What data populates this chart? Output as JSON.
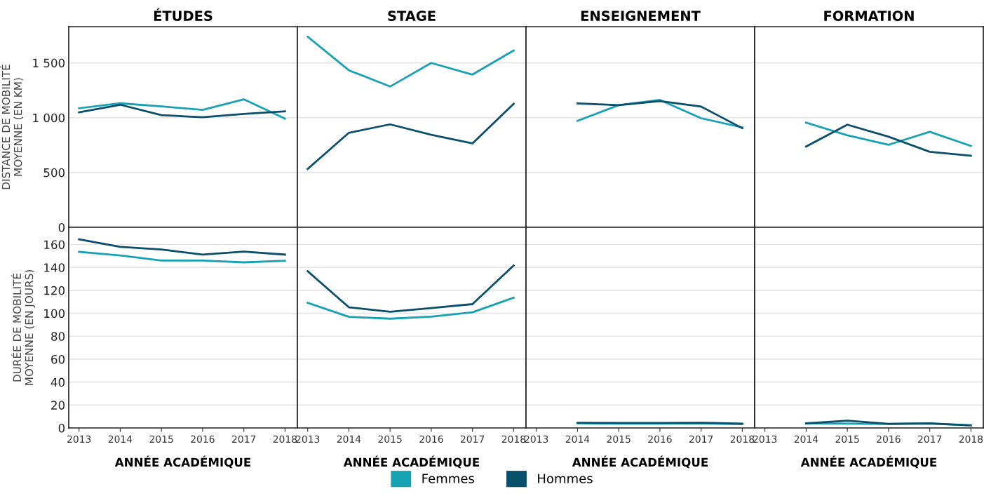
{
  "chart_data": [
    {
      "type": "line",
      "title": "ÉTUDES",
      "ylabel": "DISTANCE DE MOBILITÉ\nMOYENNE (EN KM)",
      "x": [
        2013,
        2014,
        2015,
        2016,
        2017,
        2018
      ],
      "xlim": [
        2012.75,
        2018.3
      ],
      "xticks": [
        2013,
        2014,
        2015,
        2016,
        2017,
        2018
      ],
      "ylim": [
        0,
        1830
      ],
      "yticks": [
        0,
        500,
        {
          "value": 1000,
          "label": "1 000"
        },
        {
          "value": 1500,
          "label": "1 500"
        }
      ],
      "tick_labels": "y",
      "grid": "y",
      "legend": "bottom",
      "series": [
        {
          "name": "Femmes",
          "color": "#17a2b4",
          "values": [
            1086,
            1131,
            1103,
            1071,
            1167,
            991
          ]
        },
        {
          "name": "Hommes",
          "color": "#0a4f6a",
          "values": [
            1049,
            1118,
            1023,
            1004,
            1034,
            1057
          ]
        }
      ]
    },
    {
      "type": "line",
      "title": "STAGE",
      "x": [
        2013,
        2014,
        2015,
        2016,
        2017,
        2018
      ],
      "xlim": [
        2012.75,
        2018.3
      ],
      "xticks": [
        2013,
        2014,
        2015,
        2016,
        2017,
        2018
      ],
      "ylim": [
        0,
        1830
      ],
      "yticks": [
        0,
        500,
        1000,
        1500
      ],
      "tick_labels": false,
      "grid": "y",
      "series": [
        {
          "color": "#17a2b4",
          "values": [
            1738,
            1432,
            1284,
            1499,
            1393,
            1613
          ]
        },
        {
          "color": "#0a4f6a",
          "values": [
            532,
            862,
            939,
            844,
            765,
            1127
          ]
        }
      ]
    },
    {
      "type": "line",
      "title": "ENSEIGNEMENT",
      "xlim": [
        2012.75,
        2018.3
      ],
      "xticks": [
        2013,
        2014,
        2015,
        2016,
        2017,
        2018
      ],
      "ylim": [
        0,
        1830
      ],
      "yticks": [
        0,
        500,
        1000,
        1500
      ],
      "tick_labels": false,
      "grid": "y",
      "series": [
        {
          "color": "#17a2b4",
          "x": [
            2014,
            2015,
            2016,
            2017,
            2018
          ],
          "values": [
            971,
            1114,
            1162,
            995,
            911
          ]
        },
        {
          "color": "#0a4f6a",
          "x": [
            2014,
            2015,
            2016,
            2017,
            2018
          ],
          "values": [
            1130,
            1114,
            1151,
            1101,
            904
          ]
        }
      ]
    },
    {
      "type": "line",
      "title": "FORMATION",
      "xlim": [
        2012.75,
        2018.3
      ],
      "xticks": [
        2013,
        2014,
        2015,
        2016,
        2017,
        2018
      ],
      "ylim": [
        0,
        1830
      ],
      "yticks": [
        0,
        500,
        1000,
        1500
      ],
      "tick_labels": false,
      "grid": "y",
      "series": [
        {
          "color": "#17a2b4",
          "x": [
            2014,
            2015,
            2016,
            2017,
            2018
          ],
          "values": [
            955,
            839,
            753,
            871,
            742
          ]
        },
        {
          "color": "#0a4f6a",
          "x": [
            2014,
            2015,
            2016,
            2017,
            2018
          ],
          "values": [
            737,
            936,
            826,
            689,
            653
          ]
        }
      ]
    },
    {
      "type": "line",
      "xlabel": "ANNÉE ACADÉMIQUE",
      "ylabel": "DURÉE DE MOBILITÉ\nMOYENNE (EN JOURS)",
      "x": [
        2013,
        2014,
        2015,
        2016,
        2017,
        2018
      ],
      "xlim": [
        2012.75,
        2018.3
      ],
      "xticks": [
        2013,
        2014,
        2015,
        2016,
        2017,
        2018
      ],
      "ylim": [
        0,
        175
      ],
      "yticks": [
        0,
        20,
        40,
        60,
        80,
        100,
        120,
        140,
        160
      ],
      "grid": "y",
      "series": [
        {
          "color": "#17a2b4",
          "values": [
            153.6,
            150.4,
            146,
            146,
            144.4,
            145.8
          ]
        },
        {
          "color": "#0a4f6a",
          "values": [
            164.5,
            157.9,
            155.6,
            151.2,
            153.8,
            151.2
          ]
        }
      ]
    },
    {
      "type": "line",
      "xlabel": "ANNÉE ACADÉMIQUE",
      "x": [
        2013,
        2014,
        2015,
        2016,
        2017,
        2018
      ],
      "xlim": [
        2012.75,
        2018.3
      ],
      "xticks": [
        2013,
        2014,
        2015,
        2016,
        2017,
        2018
      ],
      "ylim": [
        0,
        175
      ],
      "yticks": [
        0,
        20,
        40,
        60,
        80,
        100,
        120,
        140,
        160
      ],
      "tick_labels": "x",
      "grid": "y",
      "series": [
        {
          "color": "#17a2b4",
          "values": [
            109.2,
            96.9,
            95.3,
            97.1,
            100.9,
            113.6
          ]
        },
        {
          "color": "#0a4f6a",
          "values": [
            136.7,
            105.2,
            101.3,
            104.5,
            108,
            141.7
          ]
        }
      ]
    },
    {
      "type": "line",
      "xlabel": "ANNÉE ACADÉMIQUE",
      "xlim": [
        2012.75,
        2018.3
      ],
      "xticks": [
        2013,
        2014,
        2015,
        2016,
        2017,
        2018
      ],
      "ylim": [
        0,
        175
      ],
      "yticks": [
        0,
        20,
        40,
        60,
        80,
        100,
        120,
        140,
        160
      ],
      "tick_labels": "x",
      "grid": "y",
      "series": [
        {
          "color": "#17a2b4",
          "x": [
            2014,
            2015,
            2016,
            2017,
            2018
          ],
          "values": [
            4,
            3.8,
            3.8,
            4,
            3.3
          ]
        },
        {
          "color": "#0a4f6a",
          "x": [
            2014,
            2015,
            2016,
            2017,
            2018
          ],
          "values": [
            4.5,
            4.3,
            4.3,
            4.5,
            3.8
          ]
        }
      ]
    },
    {
      "type": "line",
      "xlabel": "ANNÉE ACADÉMIQUE",
      "xlim": [
        2012.75,
        2018.3
      ],
      "xticks": [
        2013,
        2014,
        2015,
        2016,
        2017,
        2018
      ],
      "ylim": [
        0,
        175
      ],
      "yticks": [
        0,
        20,
        40,
        60,
        80,
        100,
        120,
        140,
        160
      ],
      "tick_labels": "x",
      "grid": "y",
      "series": [
        {
          "color": "#17a2b4",
          "x": [
            2014,
            2015,
            2016,
            2017,
            2018
          ],
          "values": [
            4,
            3.8,
            3.5,
            3.8,
            2.3
          ]
        },
        {
          "color": "#0a4f6a",
          "x": [
            2014,
            2015,
            2016,
            2017,
            2018
          ],
          "values": [
            4,
            6.4,
            3.6,
            4,
            2.3
          ]
        }
      ]
    }
  ]
}
